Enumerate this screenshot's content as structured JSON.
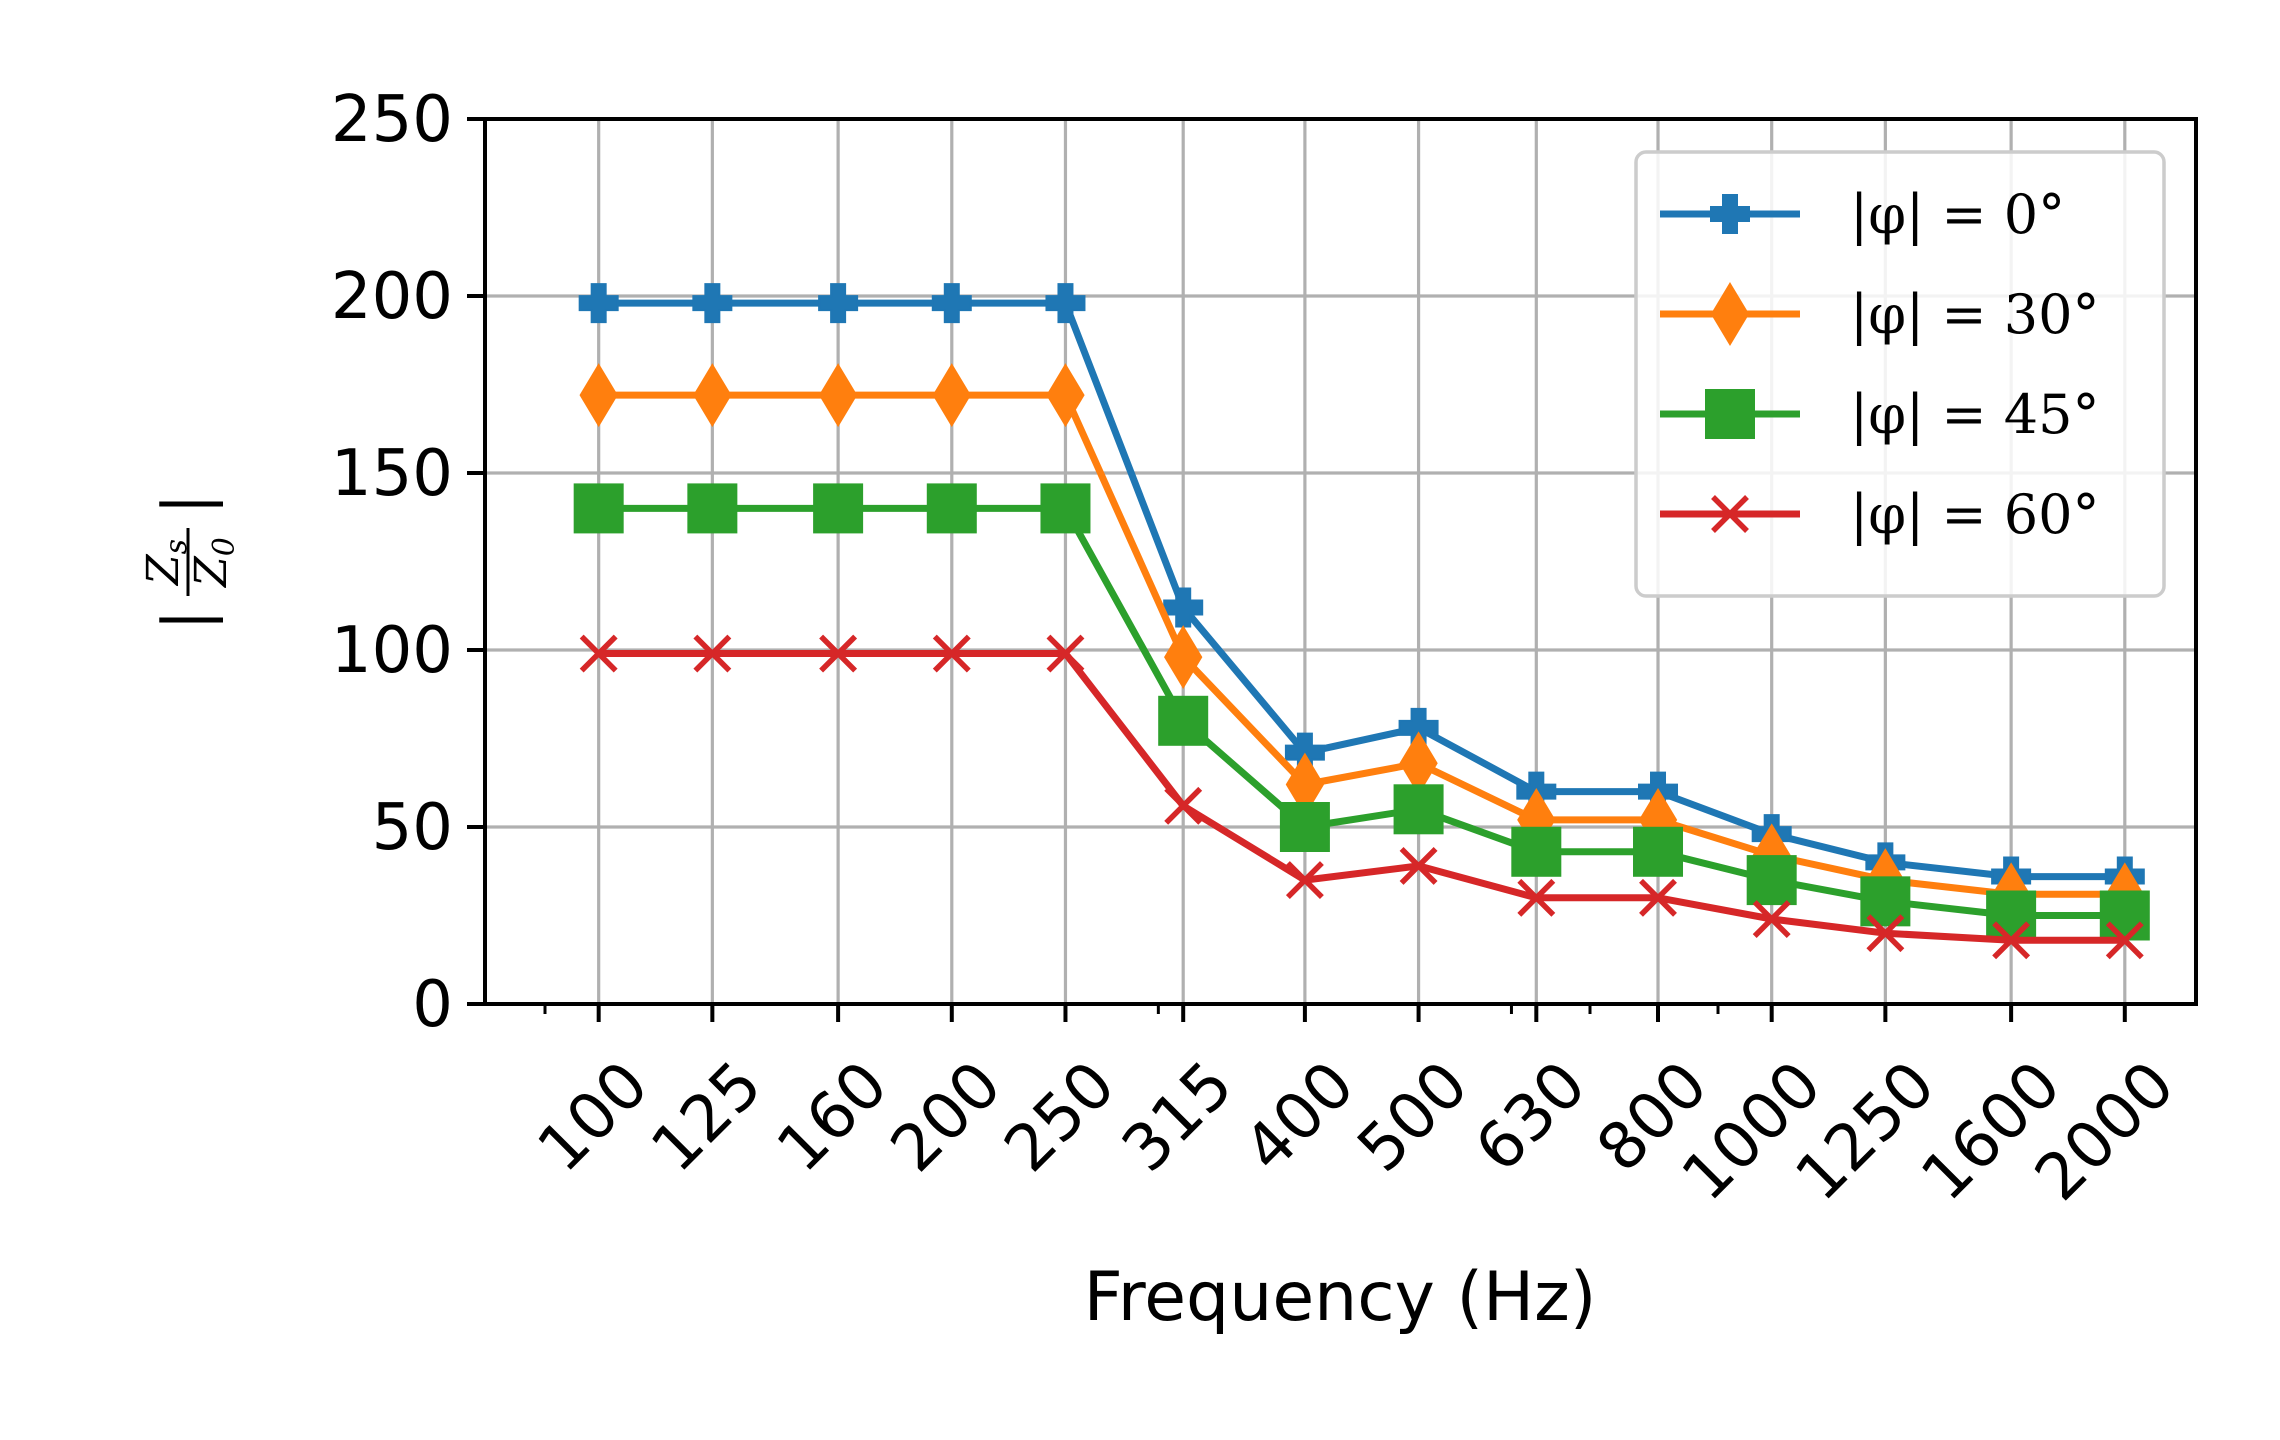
{
  "chart_data": {
    "type": "line",
    "title": "",
    "xlabel": "Frequency (Hz)",
    "ylabel": "|Z_s / Z_0|",
    "ylabel_parts": {
      "bar": "|",
      "num": "Z",
      "num_sub": "s",
      "den": "Z",
      "den_sub": "0"
    },
    "categories": [
      "100",
      "125",
      "160",
      "200",
      "250",
      "315",
      "400",
      "500",
      "630",
      "800",
      "1000",
      "1250",
      "1600",
      "2000"
    ],
    "x": [
      100,
      125,
      160,
      200,
      250,
      315,
      400,
      500,
      630,
      800,
      1000,
      1250,
      1600,
      2000
    ],
    "x_scale": "log",
    "xlim": [
      80,
      2300
    ],
    "ylim": [
      0,
      250
    ],
    "yticks": [
      0,
      50,
      100,
      150,
      200,
      250
    ],
    "ytick_labels": [
      "0",
      "50",
      "100",
      "150",
      "200",
      "250"
    ],
    "grid": true,
    "legend_position": "top-right",
    "series": [
      {
        "name": "|φ| = 0°",
        "color": "#1f77b4",
        "marker": "plus-filled",
        "values": [
          198,
          198,
          198,
          198,
          198,
          112,
          71,
          78,
          60,
          60,
          48,
          40,
          36,
          36
        ]
      },
      {
        "name": "|φ| = 30°",
        "color": "#ff7f0e",
        "marker": "thin-diamond",
        "values": [
          172,
          172,
          172,
          172,
          172,
          98,
          62,
          68,
          52,
          52,
          42,
          35,
          31,
          31
        ]
      },
      {
        "name": "|φ| = 45°",
        "color": "#2ca02c",
        "marker": "square",
        "values": [
          140,
          140,
          140,
          140,
          140,
          80,
          50,
          55,
          43,
          43,
          35,
          29,
          25,
          25
        ]
      },
      {
        "name": "|φ| = 60°",
        "color": "#d62728",
        "marker": "x",
        "values": [
          99,
          99,
          99,
          99,
          99,
          56,
          35,
          39,
          30,
          30,
          24,
          20,
          18,
          18
        ]
      }
    ]
  }
}
